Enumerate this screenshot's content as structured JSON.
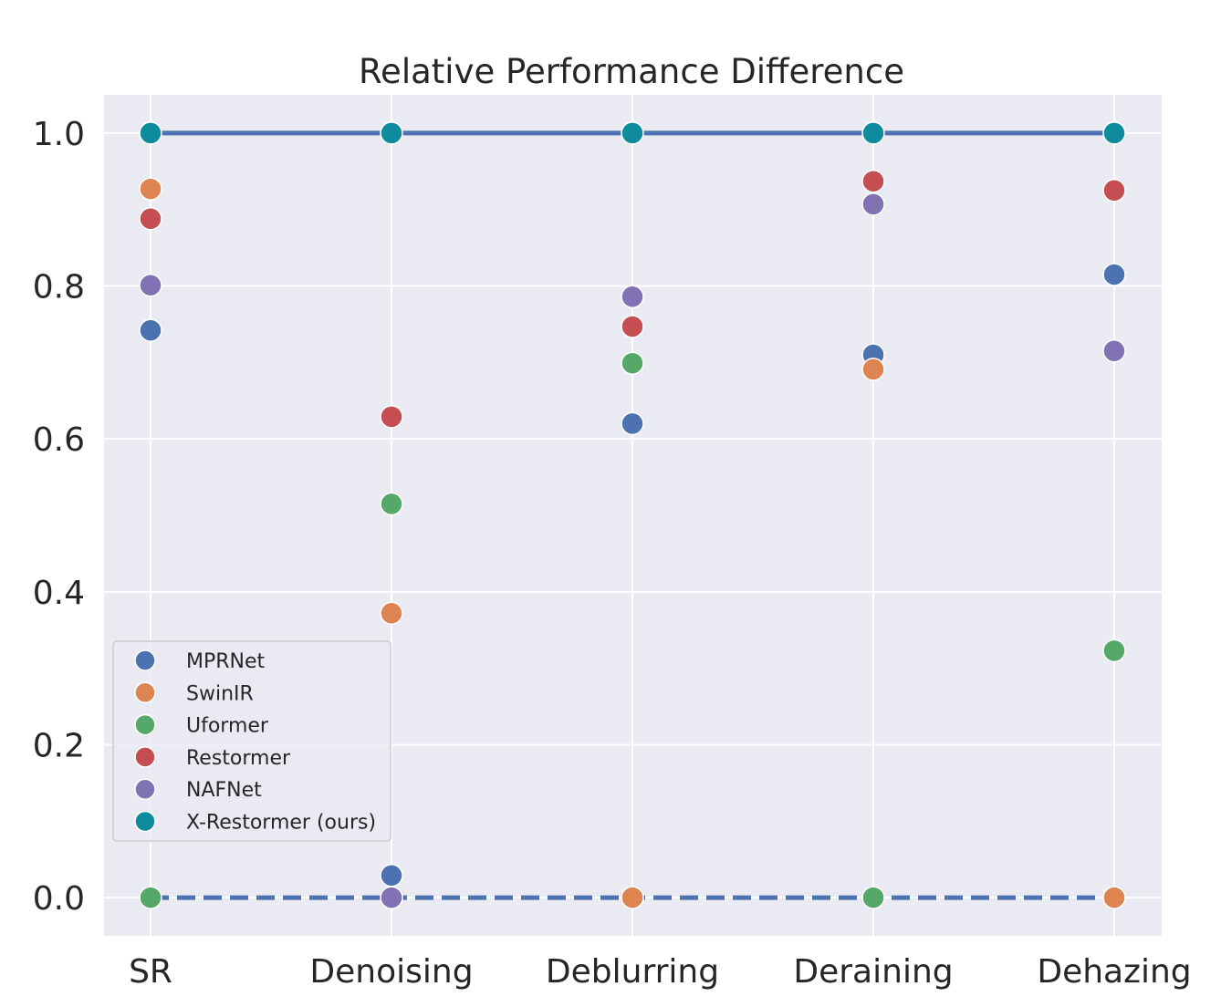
{
  "chart_data": {
    "type": "scatter",
    "title": "Relative Performance Difference",
    "xlabel": "",
    "ylabel": "",
    "categories": [
      "SR",
      "Denoising",
      "Deblurring",
      "Deraining",
      "Dehazing"
    ],
    "ylim": [
      -0.05,
      1.05
    ],
    "yticks": [
      "0.0",
      "0.2",
      "0.4",
      "0.6",
      "0.8",
      "1.0"
    ],
    "grid": true,
    "legend_position": "lower-left",
    "series": [
      {
        "name": "MPRNet",
        "color": "#4c72b0",
        "values": [
          0.742,
          0.029,
          0.62,
          0.71,
          0.815
        ]
      },
      {
        "name": "SwinIR",
        "color": "#dd8452",
        "values": [
          0.927,
          0.372,
          0.0,
          0.691,
          0.0
        ]
      },
      {
        "name": "Uformer",
        "color": "#55a868",
        "values": [
          0.0,
          0.515,
          0.699,
          0.0,
          0.323
        ]
      },
      {
        "name": "Restormer",
        "color": "#c44e52",
        "values": [
          0.888,
          0.629,
          0.747,
          0.937,
          0.925
        ]
      },
      {
        "name": "NAFNet",
        "color": "#8172b3",
        "values": [
          0.801,
          0.0,
          0.786,
          0.907,
          0.715
        ]
      },
      {
        "name": "X-Restormer (ours)",
        "color": "#0e8b9d",
        "values": [
          1.0,
          1.0,
          1.0,
          1.0,
          1.0
        ]
      }
    ],
    "reference_lines": [
      {
        "value": 1.0,
        "style": "solid",
        "color": "#4c72b0"
      },
      {
        "value": 0.0,
        "style": "dashed",
        "color": "#4c72b0"
      }
    ]
  }
}
